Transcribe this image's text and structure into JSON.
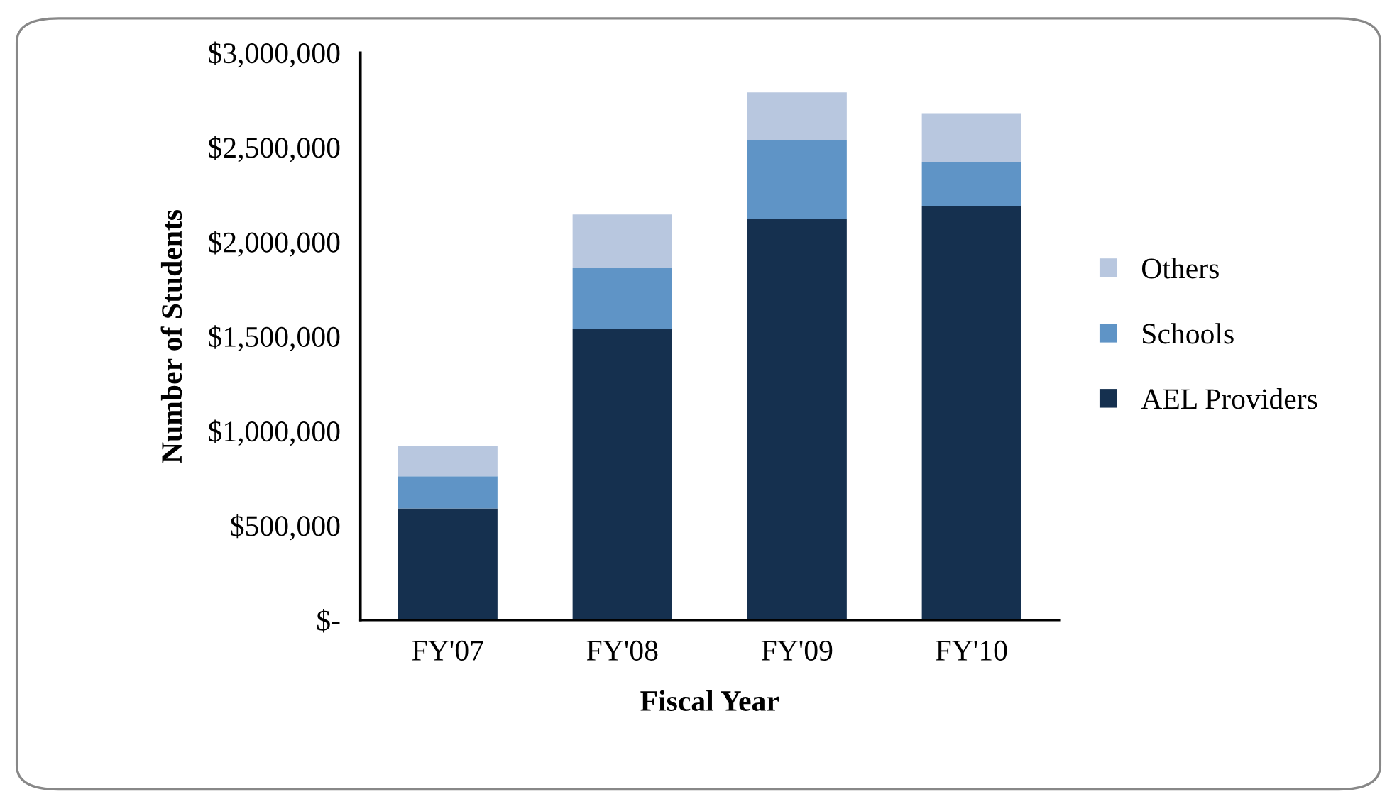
{
  "chart_data": {
    "type": "bar",
    "stacked": true,
    "xlabel": "Fiscal Year",
    "ylabel": "Number of Students",
    "categories": [
      "FY'07",
      "FY'08",
      "FY'09",
      "FY'10"
    ],
    "series": [
      {
        "name": "AEL Providers",
        "color": "#15304f",
        "values": [
          590000,
          1540000,
          2120000,
          2190000
        ]
      },
      {
        "name": "Schools",
        "color": "#5f94c6",
        "values": [
          170000,
          320000,
          420000,
          230000
        ]
      },
      {
        "name": "Others",
        "color": "#b8c7df",
        "values": [
          160000,
          285000,
          250000,
          260000
        ]
      }
    ],
    "ylim": [
      0,
      3000000
    ],
    "yticks": [
      {
        "value": 0,
        "label": "$-"
      },
      {
        "value": 500000,
        "label": "$500,000"
      },
      {
        "value": 1000000,
        "label": "$1,000,000"
      },
      {
        "value": 1500000,
        "label": "$1,500,000"
      },
      {
        "value": 2000000,
        "label": "$2,000,000"
      },
      {
        "value": 2500000,
        "label": "$2,500,000"
      },
      {
        "value": 3000000,
        "label": "$3,000,000"
      }
    ],
    "grid": false,
    "legend": "right"
  }
}
